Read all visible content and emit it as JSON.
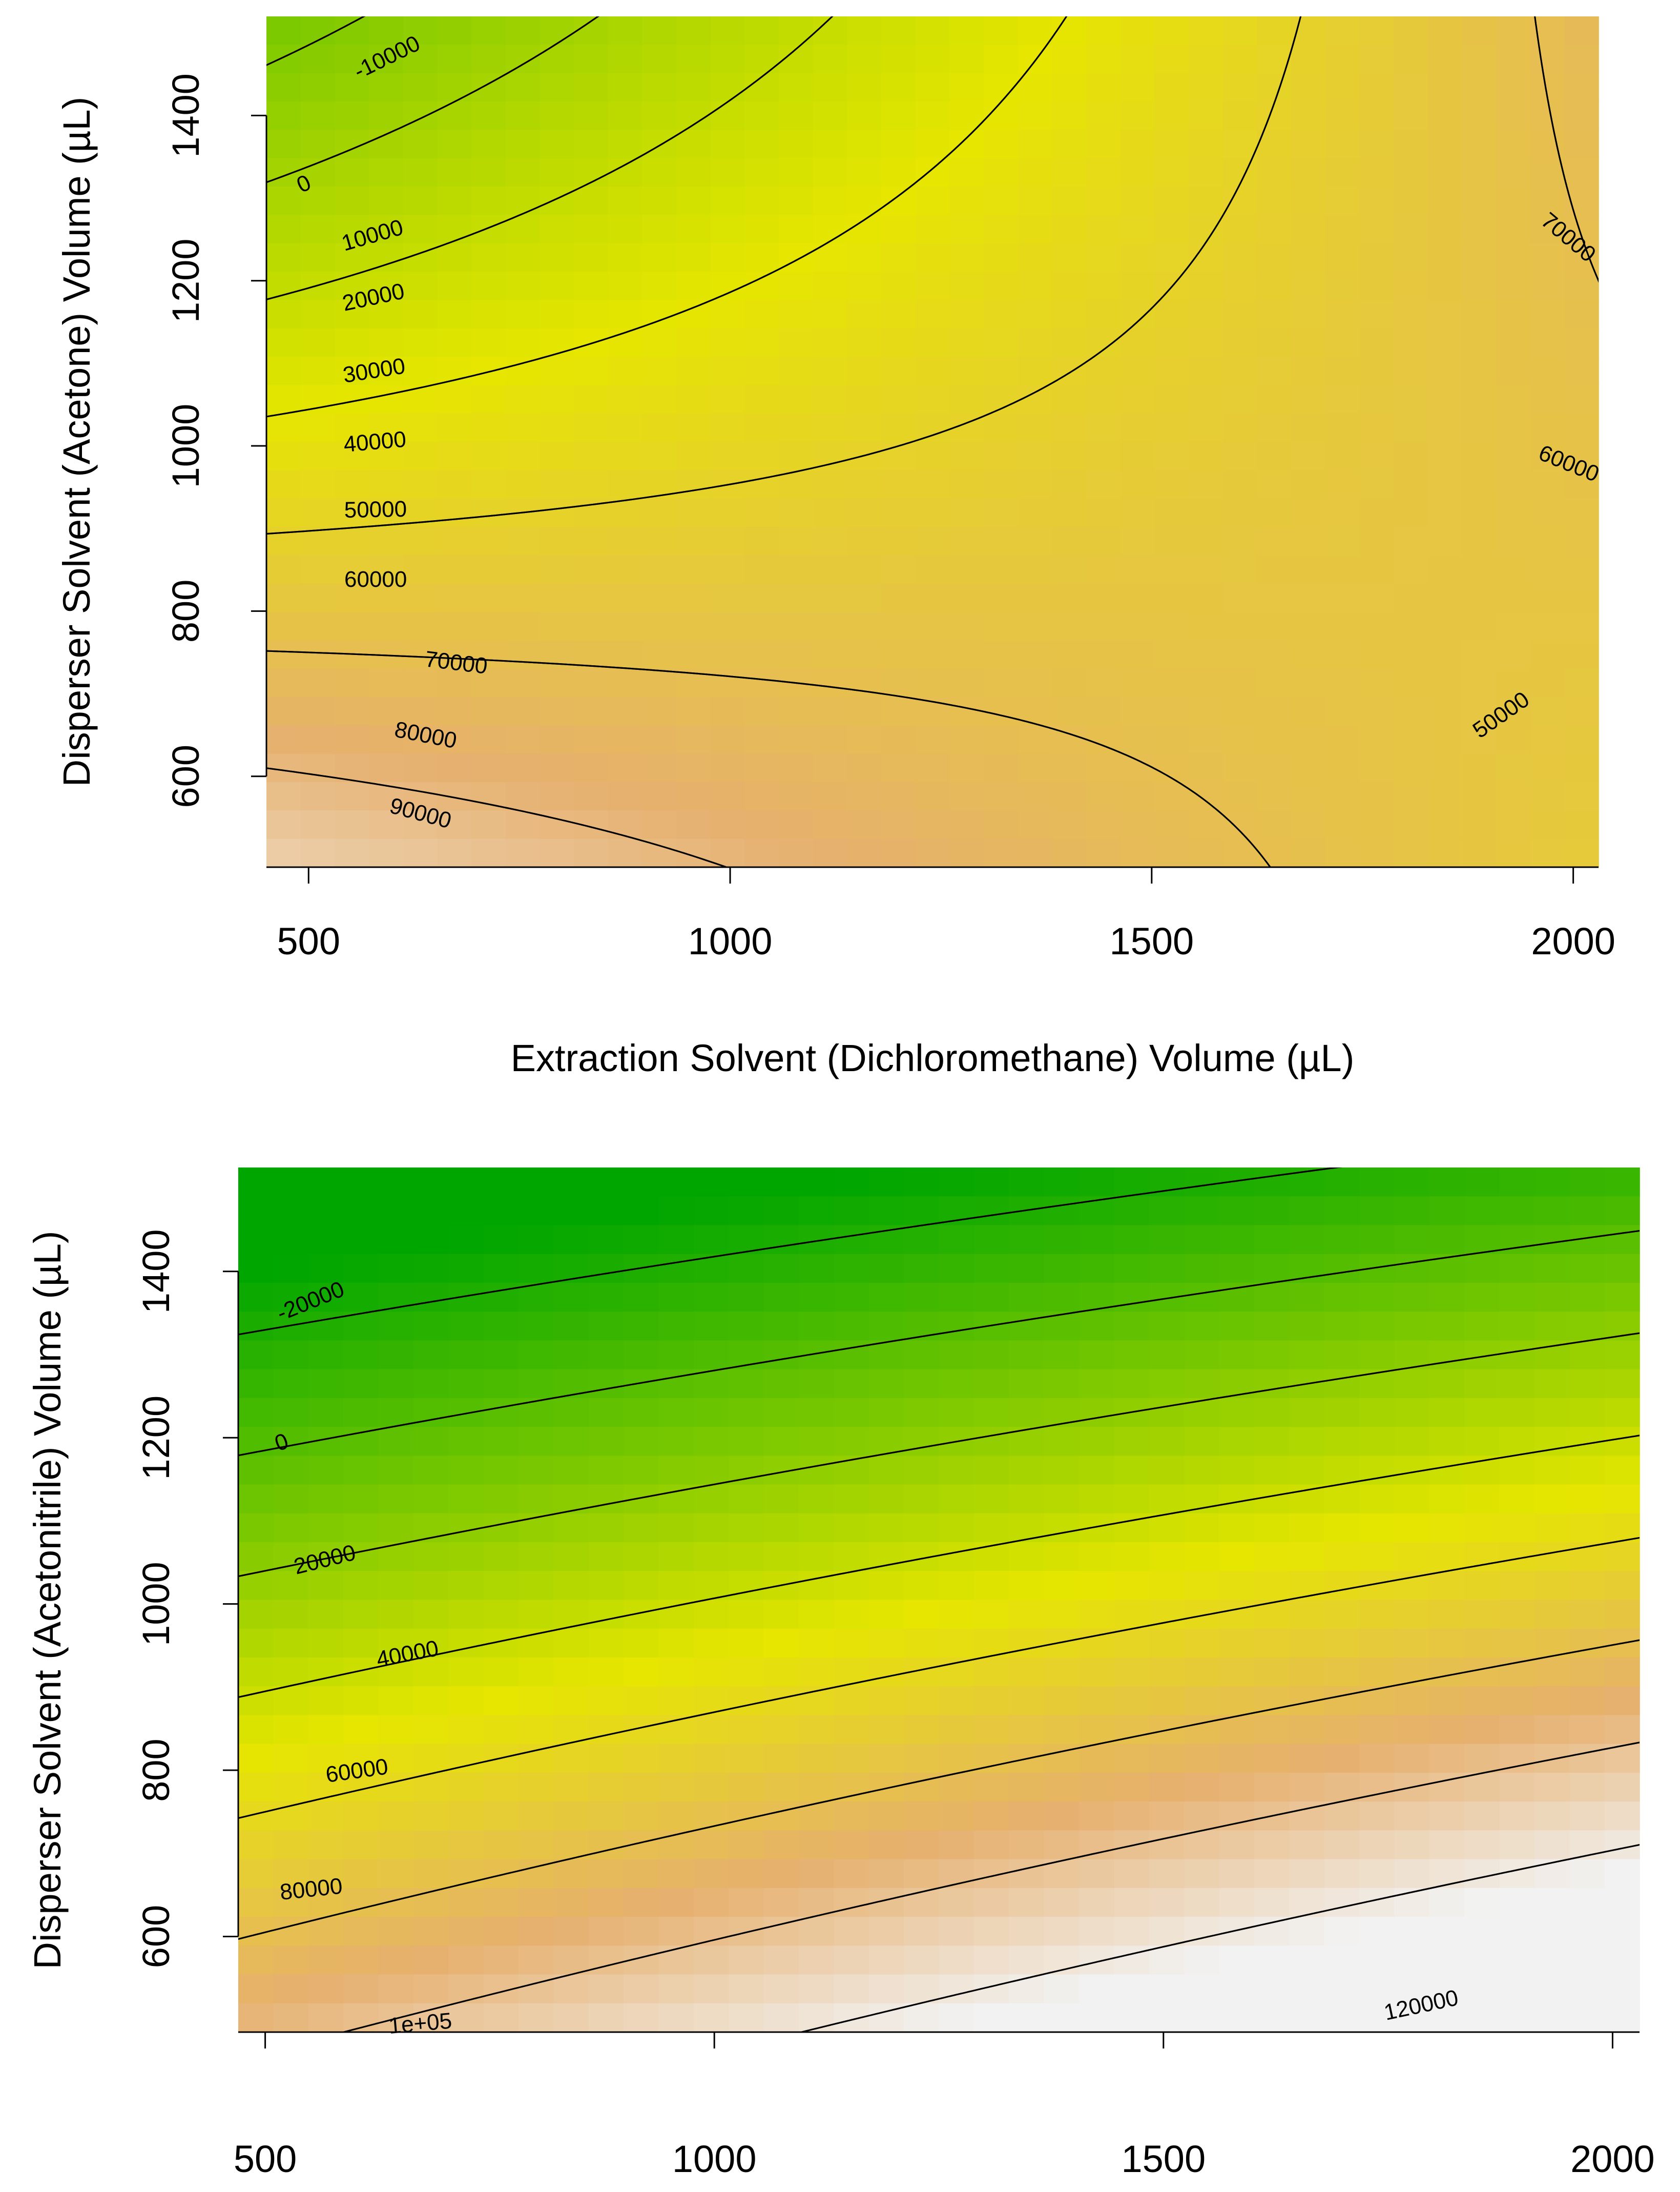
{
  "chart_data": [
    {
      "type": "heatmap",
      "subtype": "response-surface-contour",
      "title": "",
      "xlabel": "Extraction Solvent (Dichloromethane) Volume (µL)",
      "ylabel": "Disperser Solvent (Acetone) Volume (µL)",
      "xlim": [
        450,
        2030
      ],
      "ylim": [
        490,
        1520
      ],
      "x_ticks": [
        500,
        1000,
        1500,
        2000
      ],
      "x_tick_labels": [
        "500",
        "1000",
        "1500",
        "2000"
      ],
      "y_ticks": [
        600,
        800,
        1000,
        1200,
        1400
      ],
      "y_tick_labels": [
        "600",
        "800",
        "1000",
        "1200",
        "1400"
      ],
      "grid": false,
      "model": {
        "form": "a + b*x + c*y + d*x*y",
        "intercept": 141000,
        "x_coef": -40,
        "y_coef": -93,
        "xy_coef": 0.05
      },
      "color_scale": {
        "domain": [
          -20000,
          50000,
          100000
        ],
        "colors": [
          "#00a600",
          "#e6e600",
          "#f2f2f2"
        ]
      },
      "contour_levels": [
        -10000,
        0,
        10000,
        20000,
        30000,
        40000,
        50000,
        60000,
        70000,
        80000,
        90000
      ],
      "contour_labels": [
        {
          "text": "-10000"
        },
        {
          "text": "0"
        },
        {
          "text": "10000"
        },
        {
          "text": "20000"
        },
        {
          "text": "30000"
        },
        {
          "text": "40000"
        },
        {
          "text": "50000"
        },
        {
          "text": "60000"
        },
        {
          "text": "70000"
        },
        {
          "text": "80000"
        },
        {
          "text": "90000"
        },
        {
          "text": "70000"
        },
        {
          "text": "60000"
        },
        {
          "text": "50000"
        }
      ]
    },
    {
      "type": "heatmap",
      "subtype": "response-surface-contour",
      "title": "",
      "xlabel": "",
      "ylabel": "Disperser Solvent (Acetonitrile) Volume (µL)",
      "xlim": [
        470,
        2030
      ],
      "ylim": [
        485,
        1525
      ],
      "x_ticks": [
        500,
        1000,
        1500,
        2000
      ],
      "x_tick_labels": [
        "500",
        "1000",
        "1500",
        "2000"
      ],
      "y_ticks": [
        600,
        800,
        1000,
        1200,
        1400
      ],
      "y_tick_labels": [
        "600",
        "800",
        "1000",
        "1200",
        "1400"
      ],
      "grid": false,
      "model": {
        "form": "a + b*x + c*y + d*x*y",
        "intercept": 140000,
        "x_coef": 47,
        "y_coef": -130,
        "xy_coef": -0.016
      },
      "color_scale": {
        "domain": [
          -30000,
          50000,
          125000
        ],
        "colors": [
          "#00a600",
          "#e6e600",
          "#f2f2f2"
        ]
      },
      "contour_levels": [
        -20000,
        0,
        20000,
        40000,
        60000,
        80000,
        100000,
        120000
      ],
      "contour_labels": [
        {
          "text": "-20000"
        },
        {
          "text": "0"
        },
        {
          "text": "20000"
        },
        {
          "text": "40000"
        },
        {
          "text": "60000"
        },
        {
          "text": "80000"
        },
        {
          "text": "1e+05"
        },
        {
          "text": "120000"
        }
      ]
    }
  ]
}
